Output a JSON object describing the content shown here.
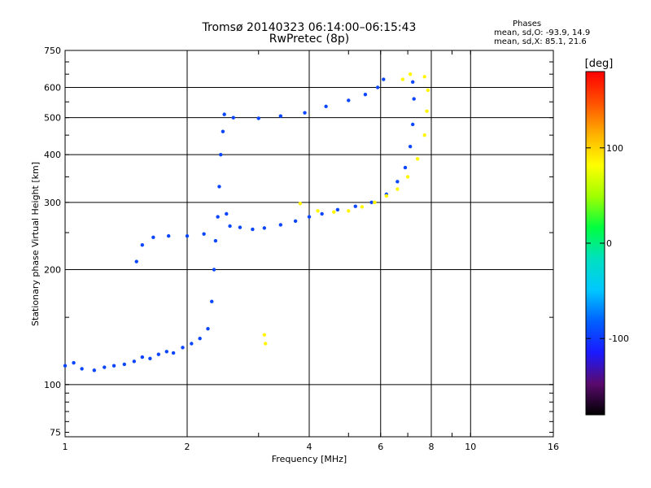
{
  "title": {
    "line1": "Tromsø 20140323 06:14:00–06:15:43",
    "line2": "RwPretec (8p)"
  },
  "phases_box": {
    "heading": "Phases",
    "line1": "mean, sd,O: -93.9, 14.9",
    "line2": "mean, sd,X:  85.1, 21.6"
  },
  "chart_data": {
    "type": "scatter",
    "title": "Tromsø 20140323 06:14:00–06:15:43",
    "subtitle": "RwPretec (8p)",
    "xlabel": "Frequency [MHz]",
    "ylabel": "Stationary phase Virtual Height [km]",
    "x_scale": "log",
    "y_scale": "log",
    "xlim": [
      1,
      16
    ],
    "ylim": [
      73,
      750
    ],
    "x_ticks": [
      1,
      2,
      4,
      6,
      8,
      10,
      16
    ],
    "y_ticks": [
      75,
      100,
      200,
      300,
      400,
      500,
      600,
      750
    ],
    "grid": true,
    "colorbar": {
      "label": "[deg]",
      "range": [
        -180,
        180
      ],
      "ticks": [
        100,
        0,
        -100
      ],
      "colormap": [
        "#000000",
        "#5a0a6e",
        "#1a1aff",
        "#0060ff",
        "#00c8ff",
        "#00e0c0",
        "#00ff40",
        "#a0ff00",
        "#ffff00",
        "#ffb000",
        "#ff5000",
        "#ff0000"
      ]
    },
    "series": [
      {
        "name": "O-mode",
        "phase_mean": -93.9,
        "phase_sd": 14.9,
        "points": [
          [
            1.0,
            112
          ],
          [
            1.05,
            114
          ],
          [
            1.1,
            110
          ],
          [
            1.18,
            109
          ],
          [
            1.25,
            111
          ],
          [
            1.32,
            112
          ],
          [
            1.4,
            113
          ],
          [
            1.48,
            115
          ],
          [
            1.55,
            118
          ],
          [
            1.62,
            117
          ],
          [
            1.7,
            120
          ],
          [
            1.78,
            122
          ],
          [
            1.85,
            121
          ],
          [
            1.95,
            125
          ],
          [
            2.05,
            128
          ],
          [
            2.15,
            132
          ],
          [
            2.25,
            140
          ],
          [
            2.3,
            165
          ],
          [
            2.33,
            200
          ],
          [
            2.35,
            238
          ],
          [
            2.38,
            275
          ],
          [
            2.4,
            330
          ],
          [
            2.42,
            400
          ],
          [
            2.45,
            460
          ],
          [
            2.47,
            510
          ],
          [
            2.5,
            280
          ],
          [
            2.55,
            260
          ],
          [
            2.7,
            258
          ],
          [
            2.9,
            255
          ],
          [
            3.1,
            257
          ],
          [
            3.4,
            262
          ],
          [
            3.7,
            268
          ],
          [
            4.0,
            275
          ],
          [
            4.3,
            280
          ],
          [
            4.7,
            287
          ],
          [
            5.2,
            293
          ],
          [
            5.7,
            300
          ],
          [
            6.2,
            315
          ],
          [
            6.6,
            340
          ],
          [
            6.9,
            370
          ],
          [
            7.1,
            420
          ],
          [
            7.2,
            480
          ],
          [
            7.25,
            560
          ],
          [
            7.2,
            620
          ],
          [
            1.5,
            210
          ],
          [
            1.55,
            232
          ],
          [
            1.65,
            243
          ],
          [
            1.8,
            245
          ],
          [
            2.0,
            245
          ],
          [
            2.2,
            248
          ],
          [
            2.6,
            500
          ],
          [
            3.0,
            498
          ],
          [
            3.4,
            505
          ],
          [
            3.9,
            515
          ],
          [
            4.4,
            535
          ],
          [
            5.0,
            555
          ],
          [
            5.5,
            575
          ],
          [
            5.9,
            600
          ],
          [
            6.1,
            630
          ]
        ]
      },
      {
        "name": "X-mode",
        "phase_mean": 85.1,
        "phase_sd": 21.6,
        "points": [
          [
            3.1,
            135
          ],
          [
            3.12,
            128
          ],
          [
            3.8,
            298
          ],
          [
            4.2,
            285
          ],
          [
            4.6,
            283
          ],
          [
            5.0,
            285
          ],
          [
            5.4,
            292
          ],
          [
            5.8,
            300
          ],
          [
            6.2,
            312
          ],
          [
            6.6,
            325
          ],
          [
            7.0,
            350
          ],
          [
            7.4,
            390
          ],
          [
            7.7,
            450
          ],
          [
            7.8,
            520
          ],
          [
            7.85,
            590
          ],
          [
            7.7,
            640
          ],
          [
            6.8,
            630
          ],
          [
            7.1,
            650
          ]
        ]
      }
    ]
  }
}
